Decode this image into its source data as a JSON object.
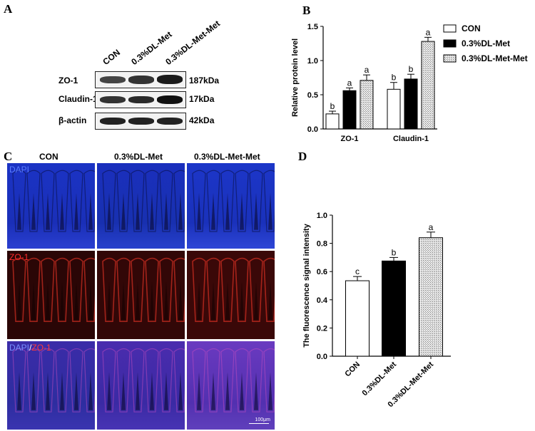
{
  "panels": {
    "a": "A",
    "b": "B",
    "c": "C",
    "d": "D"
  },
  "blot": {
    "lanes": [
      "CON",
      "0.3%DL-Met",
      "0.3%DL-Met-Met"
    ],
    "rows": [
      {
        "protein": "ZO-1",
        "size": "187kDa"
      },
      {
        "protein": "Claudin-1",
        "size": "17kDa"
      },
      {
        "protein": "β-actin",
        "size": "42kDa"
      }
    ]
  },
  "if_panel": {
    "columns": [
      "CON",
      "0.3%DL-Met",
      "0.3%DL-Met-Met"
    ],
    "rows": [
      {
        "label": "DAPI",
        "color": "#2f5bd6"
      },
      {
        "label": "ZO-1",
        "color": "#e02020"
      },
      {
        "label_a": "DAPI",
        "label_sep": "/",
        "label_b": "ZO-1"
      }
    ],
    "scale_bar": "100μm"
  },
  "colors": {
    "con": "#ffffff",
    "dlmet": "#000000",
    "dlmetmet": "#c8c8c8",
    "dapi": "#1f33c8",
    "zo1": "#c81010"
  },
  "chart_data": [
    {
      "type": "bar",
      "ylabel": "Relative protein level",
      "ylim": [
        0,
        1.5
      ],
      "yticks": [
        "0.0",
        "0.5",
        "1.0",
        "1.5"
      ],
      "categories": [
        "ZO-1",
        "Claudin-1"
      ],
      "series": [
        {
          "name": "CON",
          "values": [
            0.22,
            0.58
          ],
          "errors": [
            0.04,
            0.1
          ],
          "letters": [
            "b",
            "b"
          ]
        },
        {
          "name": "0.3%DL-Met",
          "values": [
            0.56,
            0.73
          ],
          "errors": [
            0.04,
            0.07
          ],
          "letters": [
            "a",
            "b"
          ]
        },
        {
          "name": "0.3%DL-Met-Met",
          "values": [
            0.71,
            1.28
          ],
          "errors": [
            0.08,
            0.06
          ],
          "letters": [
            "a",
            "a"
          ]
        }
      ],
      "legend_position": "right"
    },
    {
      "type": "bar",
      "ylabel": "The fluorescence signal intensity",
      "ylim": [
        0,
        1.0
      ],
      "yticks": [
        "0.0",
        "0.2",
        "0.4",
        "0.6",
        "0.8",
        "1.0"
      ],
      "categories": [
        "CON",
        "0.3%DL-Met",
        "0.3%DL-Met-Met"
      ],
      "values": [
        0.535,
        0.675,
        0.84
      ],
      "errors": [
        0.03,
        0.025,
        0.04
      ],
      "letters": [
        "c",
        "b",
        "a"
      ]
    }
  ]
}
